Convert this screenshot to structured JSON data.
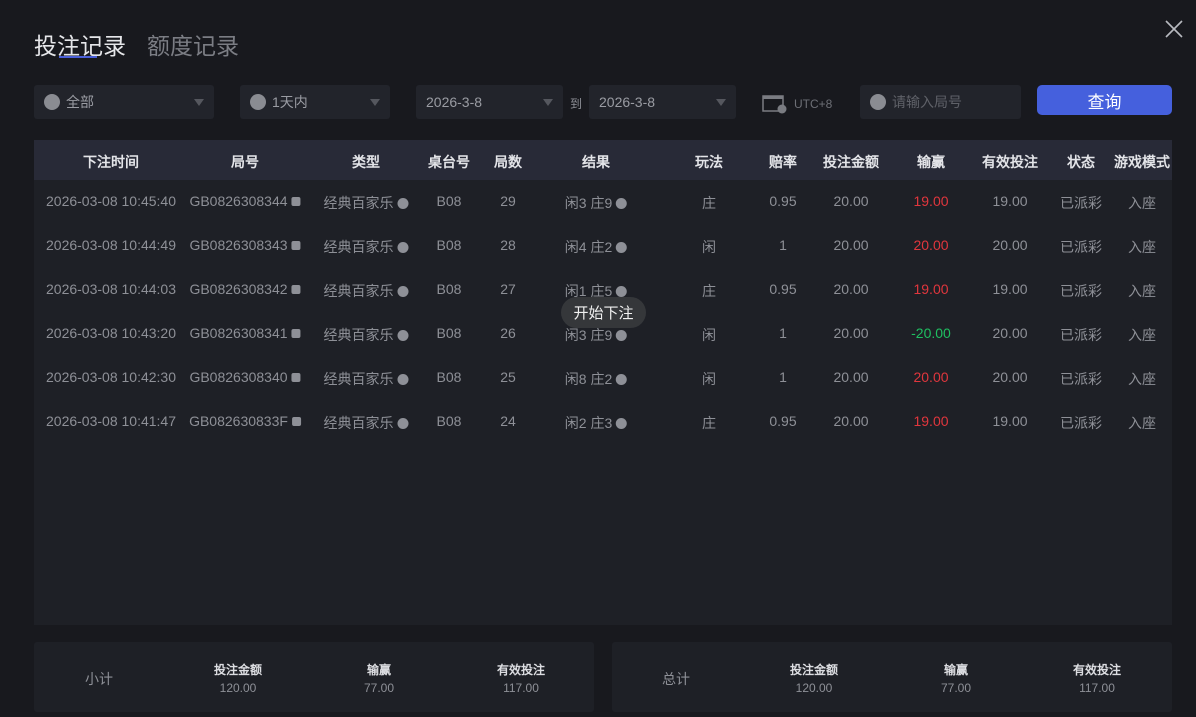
{
  "tabs": [
    {
      "label": "投注记录",
      "active": true
    },
    {
      "label": "额度记录",
      "active": false
    }
  ],
  "filters": {
    "game": "全部",
    "period": "1天内",
    "date_from": "2026-3-8",
    "to_label": "到",
    "date_to": "2026-3-8",
    "timezone": "UTC+8",
    "round_placeholder": "请输入局号",
    "query_label": "查询"
  },
  "table": {
    "headers": [
      "下注时间",
      "局号",
      "类型",
      "桌台号",
      "局数",
      "结果",
      "玩法",
      "赔率",
      "投注金额",
      "输赢",
      "有效投注",
      "状态",
      "游戏模式"
    ],
    "rows": [
      {
        "time": "2026-03-08 10:45:40",
        "round": "GB0826308344",
        "type": "经典百家乐",
        "table": "B08",
        "count": "29",
        "result": "闲3 庄9",
        "play": "庄",
        "odds": "0.95",
        "bet": "20.00",
        "winloss": "19.00",
        "winloss_color": "red",
        "valid": "19.00",
        "status": "已派彩",
        "mode": "入座"
      },
      {
        "time": "2026-03-08 10:44:49",
        "round": "GB0826308343",
        "type": "经典百家乐",
        "table": "B08",
        "count": "28",
        "result": "闲4 庄2",
        "play": "闲",
        "odds": "1",
        "bet": "20.00",
        "winloss": "20.00",
        "winloss_color": "red",
        "valid": "20.00",
        "status": "已派彩",
        "mode": "入座"
      },
      {
        "time": "2026-03-08 10:44:03",
        "round": "GB0826308342",
        "type": "经典百家乐",
        "table": "B08",
        "count": "27",
        "result": "闲1 庄5",
        "play": "庄",
        "odds": "0.95",
        "bet": "20.00",
        "winloss": "19.00",
        "winloss_color": "red",
        "valid": "19.00",
        "status": "已派彩",
        "mode": "入座"
      },
      {
        "time": "2026-03-08 10:43:20",
        "round": "GB0826308341",
        "type": "经典百家乐",
        "table": "B08",
        "count": "26",
        "result": "闲3 庄9",
        "play": "闲",
        "odds": "1",
        "bet": "20.00",
        "winloss": "-20.00",
        "winloss_color": "green",
        "valid": "20.00",
        "status": "已派彩",
        "mode": "入座"
      },
      {
        "time": "2026-03-08 10:42:30",
        "round": "GB0826308340",
        "type": "经典百家乐",
        "table": "B08",
        "count": "25",
        "result": "闲8 庄2",
        "play": "闲",
        "odds": "1",
        "bet": "20.00",
        "winloss": "20.00",
        "winloss_color": "red",
        "valid": "20.00",
        "status": "已派彩",
        "mode": "入座"
      },
      {
        "time": "2026-03-08 10:41:47",
        "round": "GB082630833F",
        "type": "经典百家乐",
        "table": "B08",
        "count": "24",
        "result": "闲2 庄3",
        "play": "庄",
        "odds": "0.95",
        "bet": "20.00",
        "winloss": "19.00",
        "winloss_color": "red",
        "valid": "19.00",
        "status": "已派彩",
        "mode": "入座"
      }
    ]
  },
  "tooltip": "开始下注",
  "subtotal": {
    "label": "小计",
    "bet_label": "投注金额",
    "bet": "120.00",
    "winloss_label": "输赢",
    "winloss": "77.00",
    "valid_label": "有效投注",
    "valid": "117.00"
  },
  "total": {
    "label": "总计",
    "bet_label": "投注金额",
    "bet": "120.00",
    "winloss_label": "输赢",
    "winloss": "77.00",
    "valid_label": "有效投注",
    "valid": "117.00"
  },
  "colors": {
    "accent": "#4560dd",
    "win": "#e0363d",
    "loss": "#1fbf61"
  }
}
